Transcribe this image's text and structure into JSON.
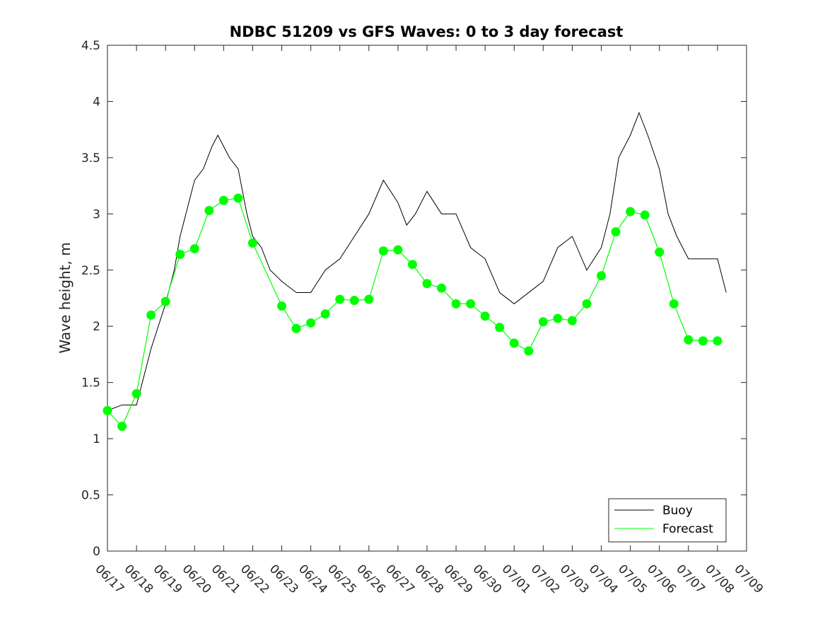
{
  "chart_data": {
    "type": "line",
    "title": "NDBC 51209 vs GFS Waves: 0 to 3 day forecast",
    "xlabel": "",
    "ylabel": "Wave height, m",
    "ylim": [
      0,
      4.5
    ],
    "yticks": [
      "0",
      "0.5",
      "1",
      "1.5",
      "2",
      "2.5",
      "3",
      "3.5",
      "4",
      "4.5"
    ],
    "xticks": [
      "06/17",
      "06/18",
      "06/19",
      "06/20",
      "06/21",
      "06/22",
      "06/23",
      "06/24",
      "06/25",
      "06/26",
      "06/27",
      "06/28",
      "06/29",
      "06/30",
      "07/01",
      "07/02",
      "07/03",
      "07/04",
      "07/05",
      "07/06",
      "07/07",
      "07/08",
      "07/09"
    ],
    "x_unit": "days after 06/17",
    "xlim": [
      0,
      22
    ],
    "grid": false,
    "legend": {
      "position": "bottom-right",
      "entries": [
        "Buoy",
        "Forecast"
      ]
    },
    "colors": {
      "buoy": "#000000",
      "forecast": "#00ff00",
      "axes": "#262626"
    },
    "series": [
      {
        "name": "Buoy",
        "style": "line-noisy",
        "x": [
          0,
          0.5,
          1.0,
          1.5,
          2.0,
          2.3,
          2.5,
          2.8,
          3.0,
          3.3,
          3.6,
          3.8,
          4.0,
          4.2,
          4.5,
          4.8,
          5.0,
          5.3,
          5.6,
          6.0,
          6.5,
          7.0,
          7.5,
          8.0,
          8.5,
          9.0,
          9.5,
          10.0,
          10.3,
          10.6,
          11.0,
          11.5,
          12.0,
          12.5,
          13.0,
          13.5,
          14.0,
          14.5,
          15.0,
          15.5,
          16.0,
          16.5,
          17.0,
          17.3,
          17.6,
          18.0,
          18.3,
          18.6,
          19.0,
          19.3,
          19.6,
          20.0,
          20.5,
          21.0,
          21.3
        ],
        "values": [
          1.25,
          1.3,
          1.3,
          1.8,
          2.2,
          2.5,
          2.8,
          3.1,
          3.3,
          3.4,
          3.6,
          3.7,
          3.6,
          3.5,
          3.4,
          3.0,
          2.8,
          2.7,
          2.5,
          2.4,
          2.3,
          2.3,
          2.5,
          2.6,
          2.8,
          3.0,
          3.3,
          3.1,
          2.9,
          3.0,
          3.2,
          3.0,
          3.0,
          2.7,
          2.6,
          2.3,
          2.2,
          2.3,
          2.4,
          2.7,
          2.8,
          2.5,
          2.7,
          3.0,
          3.5,
          3.7,
          3.9,
          3.7,
          3.4,
          3.0,
          2.8,
          2.6,
          2.6,
          2.6,
          2.3
        ]
      },
      {
        "name": "Forecast",
        "style": "line-markers",
        "x": [
          0,
          0.5,
          1.0,
          1.5,
          2.0,
          2.5,
          3.0,
          3.5,
          4.0,
          4.5,
          5.0,
          6.0,
          6.5,
          7.0,
          7.5,
          8.0,
          8.5,
          9.0,
          9.5,
          10.0,
          10.5,
          11.0,
          11.5,
          12.0,
          12.5,
          13.0,
          13.5,
          14.0,
          14.5,
          15.0,
          15.5,
          16.0,
          16.5,
          17.0,
          17.5,
          18.0,
          18.5,
          19.0,
          19.5,
          20.0,
          20.5,
          21.0
        ],
        "values": [
          1.25,
          1.11,
          1.4,
          2.1,
          2.22,
          2.64,
          2.69,
          3.03,
          3.12,
          3.14,
          2.74,
          2.18,
          1.98,
          2.03,
          2.11,
          2.24,
          2.23,
          2.24,
          2.67,
          2.68,
          2.55,
          2.38,
          2.34,
          2.2,
          2.2,
          2.09,
          1.99,
          1.85,
          1.78,
          2.04,
          2.07,
          2.05,
          2.2,
          2.45,
          2.84,
          3.02,
          2.99,
          2.66,
          2.2,
          1.88,
          1.87,
          1.87
        ]
      }
    ]
  }
}
